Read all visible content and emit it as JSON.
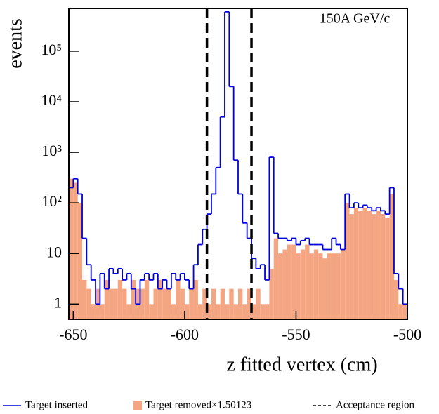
{
  "chart_data": {
    "type": "histogram",
    "annotation": "150A GeV/c",
    "x_label": "z fitted vertex (cm)",
    "y_label": "events",
    "bins": [
      -652,
      -650,
      -648,
      -646,
      -644,
      -642,
      -640,
      -638,
      -636,
      -634,
      -632,
      -630,
      -628,
      -626,
      -624,
      -622,
      -620,
      -618,
      -616,
      -614,
      -612,
      -610,
      -608,
      -606,
      -604,
      -602,
      -600,
      -598,
      -596,
      -594,
      -592,
      -590,
      -588,
      -586,
      -584,
      -582,
      -580,
      -578,
      -576,
      -574,
      -572,
      -570,
      -568,
      -566,
      -564,
      -562,
      -560,
      -558,
      -556,
      -554,
      -552,
      -550,
      -548,
      -546,
      -544,
      -542,
      -540,
      -538,
      -536,
      -534,
      -532,
      -530,
      -528,
      -526,
      -524,
      -522,
      -520,
      -518,
      -516,
      -514,
      -512,
      -510,
      -508,
      -506,
      -504,
      -502,
      -500
    ],
    "series": [
      {
        "name": "Target removed×1.50123",
        "color": "#f4a582",
        "style": "filled",
        "values": [
          300,
          250,
          100,
          3,
          2,
          1,
          2,
          1,
          3,
          2,
          2,
          3,
          2,
          1,
          3,
          2,
          2,
          3,
          1,
          2,
          3,
          2,
          2,
          1,
          3,
          2,
          1,
          2,
          3,
          1,
          2,
          1,
          2,
          1,
          2,
          1,
          2,
          1,
          2,
          1,
          2,
          1,
          2,
          1,
          1,
          5,
          20,
          10,
          12,
          15,
          15,
          10,
          12,
          15,
          10,
          12,
          10,
          8,
          10,
          10,
          10,
          12,
          100,
          60,
          80,
          70,
          80,
          70,
          60,
          70,
          60,
          50,
          150,
          3,
          1,
          1
        ]
      },
      {
        "name": "Target inserted",
        "color": "#0000dd",
        "style": "step",
        "values": [
          200,
          300,
          150,
          20,
          6,
          3,
          1,
          4,
          2,
          5,
          4,
          5,
          3,
          4,
          2,
          1,
          3,
          4,
          3,
          4,
          2,
          3,
          2,
          4,
          3,
          4,
          3,
          2,
          6,
          15,
          30,
          60,
          150,
          500,
          5000,
          600000,
          20000,
          700,
          150,
          40,
          20,
          8,
          5,
          6,
          3,
          800,
          25,
          20,
          20,
          18,
          20,
          15,
          18,
          20,
          15,
          15,
          15,
          12,
          12,
          20,
          15,
          12,
          150,
          80,
          100,
          80,
          90,
          80,
          70,
          80,
          70,
          60,
          200,
          4,
          2,
          1
        ]
      }
    ],
    "acceptance": {
      "name": "Acceptance region",
      "color": "#000000",
      "values": [
        -590,
        -570
      ]
    },
    "xlim": [
      -652,
      -500
    ],
    "xticks": [
      -650,
      -600,
      -550,
      -500
    ],
    "ylim": [
      0.5,
      700000
    ],
    "log_y": true,
    "yticks": [
      1,
      10,
      {
        "value": 100,
        "label": "10²"
      },
      {
        "value": 1000,
        "label": "10³"
      },
      {
        "value": 10000,
        "label": "10⁴"
      },
      {
        "value": 100000,
        "label": "10⁵"
      }
    ]
  }
}
